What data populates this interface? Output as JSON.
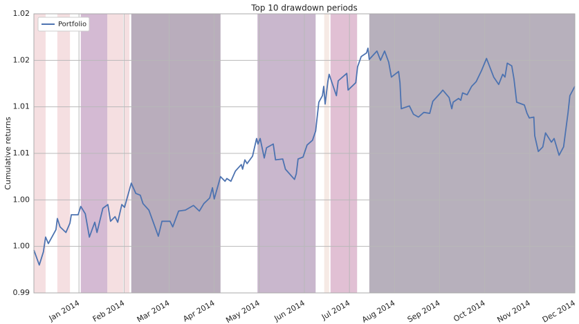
{
  "chart_data": {
    "type": "line",
    "title": "Top 10 drawdown periods",
    "ylabel": "Cumulative returns",
    "legend": "upper left",
    "grid": true,
    "xlim": [
      0,
      12
    ],
    "xticks": [
      {
        "value": 1,
        "label": "Jan 2014"
      },
      {
        "value": 2,
        "label": "Feb 2014"
      },
      {
        "value": 3,
        "label": "Mar 2014"
      },
      {
        "value": 4,
        "label": "Apr 2014"
      },
      {
        "value": 5,
        "label": "May 2014"
      },
      {
        "value": 6,
        "label": "Jun 2014"
      },
      {
        "value": 7,
        "label": "Jul 2014"
      },
      {
        "value": 8,
        "label": "Aug 2014"
      },
      {
        "value": 9,
        "label": "Sep 2014"
      },
      {
        "value": 10,
        "label": "Oct 2014"
      },
      {
        "value": 11,
        "label": "Nov 2014"
      },
      {
        "value": 12,
        "label": "Dec 2014"
      }
    ],
    "ylim": [
      0.99,
      1.02
    ],
    "yticks": [
      0.99,
      {
        "value": 0.995,
        "label": "1.00"
      },
      {
        "value": 1.0,
        "label": "1.00"
      },
      {
        "value": 1.005,
        "label": "1.01"
      },
      1.01,
      {
        "value": 1.015,
        "label": "1.02"
      },
      1.02
    ],
    "spans": [
      {
        "x": [
          0,
          0.26
        ],
        "color": "#f3d9dc"
      },
      {
        "x": [
          0.52,
          0.8
        ],
        "color": "#f3d9dc"
      },
      {
        "x": [
          1.04,
          1.63
        ],
        "color": "#ccaecb"
      },
      {
        "x": [
          1.63,
          1.98
        ],
        "color": "#f3d9dc"
      },
      {
        "x": [
          2.01,
          2.12
        ],
        "color": "#f3d9dc"
      },
      {
        "x": [
          2.16,
          4.14
        ],
        "color": "#ad9fb0"
      },
      {
        "x": [
          4.96,
          6.25
        ],
        "color": "#c0aac4"
      },
      {
        "x": [
          6.44,
          6.55
        ],
        "color": "#f5e6e0"
      },
      {
        "x": [
          6.58,
          7.17
        ],
        "color": "#dcb5cd"
      },
      {
        "x": [
          7.44,
          12.0
        ],
        "color": "#aaa2b0"
      }
    ],
    "x": [
      0,
      0.12,
      0.21,
      0.26,
      0.32,
      0.49,
      0.52,
      0.58,
      0.71,
      0.8,
      0.83,
      0.98,
      1.04,
      1.14,
      1.23,
      1.35,
      1.4,
      1.53,
      1.64,
      1.7,
      1.8,
      1.86,
      1.95,
      2.01,
      2.16,
      2.26,
      2.36,
      2.42,
      2.55,
      2.76,
      2.84,
      3.02,
      3.08,
      3.21,
      3.36,
      3.54,
      3.67,
      3.77,
      3.9,
      3.96,
      4.0,
      4.14,
      4.24,
      4.28,
      4.37,
      4.47,
      4.6,
      4.63,
      4.68,
      4.73,
      4.85,
      4.94,
      4.97,
      5.02,
      5.11,
      5.16,
      5.31,
      5.36,
      5.52,
      5.58,
      5.78,
      5.82,
      5.86,
      5.97,
      6.06,
      6.18,
      6.25,
      6.32,
      6.4,
      6.43,
      6.46,
      6.52,
      6.55,
      6.71,
      6.75,
      6.94,
      6.97,
      7.14,
      7.18,
      7.26,
      7.38,
      7.41,
      7.44,
      7.61,
      7.69,
      7.78,
      7.87,
      7.93,
      8.09,
      8.12,
      8.15,
      8.33,
      8.42,
      8.53,
      8.65,
      8.78,
      8.85,
      9.02,
      9.07,
      9.21,
      9.27,
      9.3,
      9.42,
      9.47,
      9.51,
      9.61,
      9.71,
      9.81,
      9.93,
      10.04,
      10.2,
      10.31,
      10.4,
      10.45,
      10.5,
      10.6,
      10.65,
      10.71,
      10.88,
      10.94,
      10.99,
      11.09,
      11.11,
      11.19,
      11.29,
      11.35,
      11.48,
      11.54,
      11.65,
      11.75,
      11.85,
      11.89,
      12.0
    ],
    "series": [
      {
        "name": "Portfolio",
        "color": "#4c72b0",
        "values": [
          0.9946,
          0.993,
          0.9944,
          0.996,
          0.9953,
          0.9968,
          0.998,
          0.9971,
          0.9965,
          0.9975,
          0.9984,
          0.9984,
          0.9993,
          0.9985,
          0.996,
          0.9976,
          0.9965,
          0.9991,
          0.9995,
          0.9977,
          0.9982,
          0.9976,
          0.9995,
          0.9992,
          1.0018,
          1.0007,
          1.0005,
          0.9996,
          0.9989,
          0.9961,
          0.9977,
          0.9977,
          0.9971,
          0.9988,
          0.9989,
          0.9994,
          0.9988,
          0.9996,
          1.0002,
          1.0013,
          1.0001,
          1.0025,
          1.002,
          1.0023,
          1.002,
          1.0031,
          1.0038,
          1.0033,
          1.0043,
          1.0039,
          1.0047,
          1.0066,
          1.006,
          1.0066,
          1.0045,
          1.0056,
          1.006,
          1.0043,
          1.0044,
          1.0033,
          1.0022,
          1.0028,
          1.0044,
          1.0046,
          1.0059,
          1.0064,
          1.0074,
          1.0105,
          1.0112,
          1.0122,
          1.0103,
          1.0127,
          1.0135,
          1.0112,
          1.0128,
          1.0136,
          1.0118,
          1.0126,
          1.0143,
          1.0154,
          1.0158,
          1.0163,
          1.0151,
          1.016,
          1.015,
          1.016,
          1.0148,
          1.0132,
          1.0138,
          1.0126,
          1.0098,
          1.0101,
          1.0092,
          1.0089,
          1.0094,
          1.0093,
          1.0106,
          1.0115,
          1.0118,
          1.011,
          1.0098,
          1.0105,
          1.0109,
          1.0107,
          1.0115,
          1.0113,
          1.0122,
          1.0127,
          1.0139,
          1.0152,
          1.0132,
          1.0124,
          1.0135,
          1.0132,
          1.0147,
          1.0144,
          1.013,
          1.0105,
          1.0102,
          1.0093,
          1.0088,
          1.0089,
          1.0069,
          1.0052,
          1.0057,
          1.0072,
          1.0062,
          1.0066,
          1.0048,
          1.0057,
          1.0094,
          1.0112,
          1.0122
        ]
      }
    ]
  }
}
